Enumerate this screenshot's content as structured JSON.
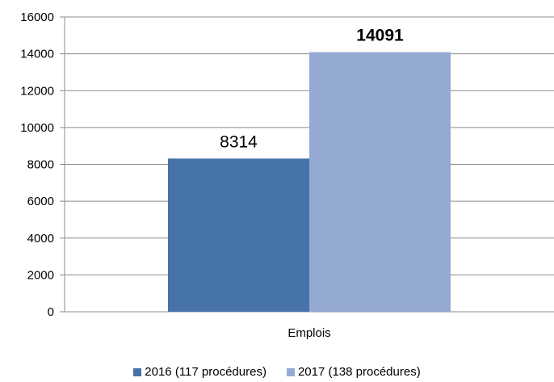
{
  "chart_data": {
    "type": "bar",
    "categories": [
      "Emplois"
    ],
    "series": [
      {
        "name": "2016 (117 procédures)",
        "values": [
          8314
        ],
        "color": "#4673a8",
        "label": "8314",
        "label_bold": false
      },
      {
        "name": "2017 (138 procédures)",
        "values": [
          14091
        ],
        "color": "#95aad3",
        "label": "14091",
        "label_bold": true
      }
    ],
    "ylim": [
      0,
      16000
    ],
    "yticks": [
      0,
      2000,
      4000,
      6000,
      8000,
      10000,
      12000,
      14000,
      16000
    ],
    "grid": true,
    "legend_position": "bottom",
    "title": "",
    "xlabel": "",
    "ylabel": ""
  }
}
